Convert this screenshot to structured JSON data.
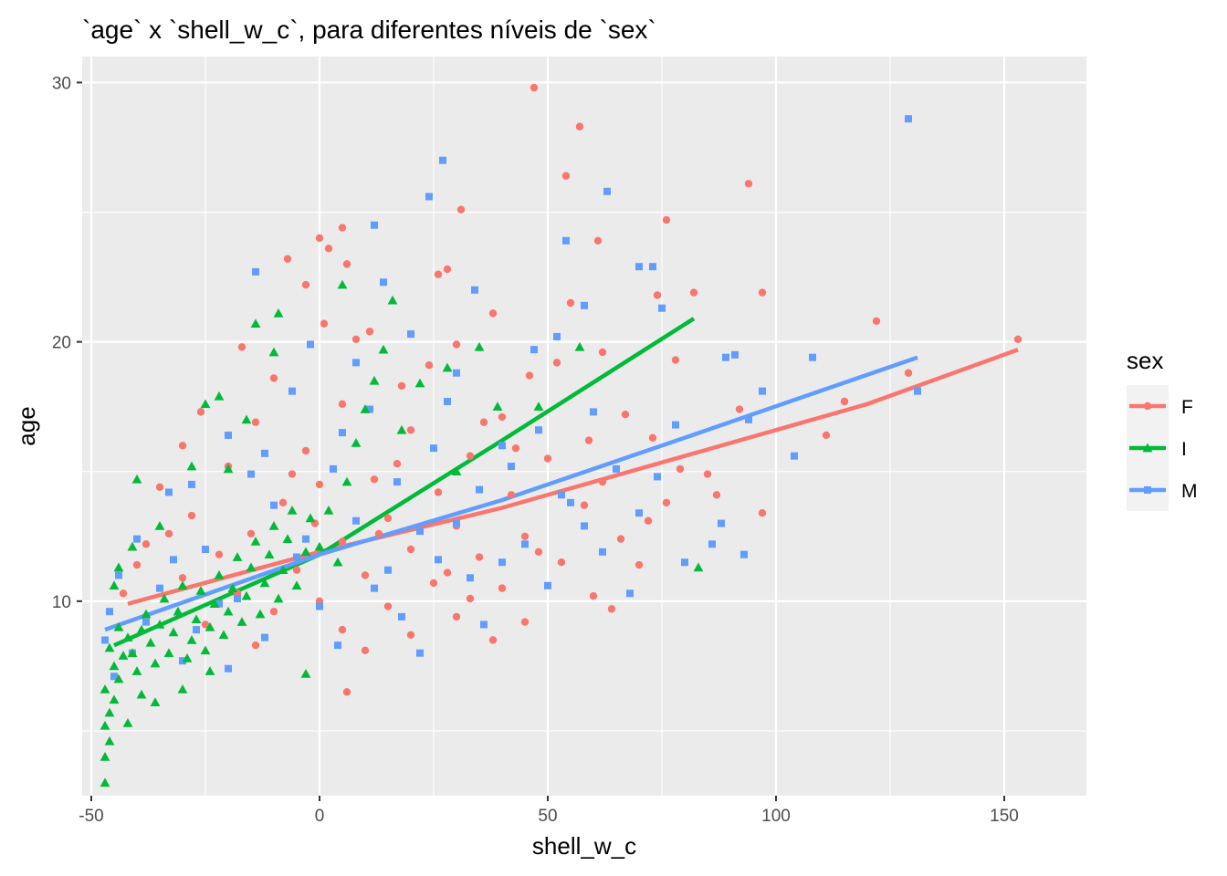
{
  "chart_data": {
    "type": "scatter",
    "title": "`age` x `shell_w_c`, para diferentes níveis de `sex`",
    "xlabel": "shell_w_c",
    "ylabel": "age",
    "xlim": [
      -52,
      168
    ],
    "ylim": [
      2.5,
      31
    ],
    "x_ticks": [
      -50,
      0,
      50,
      100,
      150
    ],
    "x_tick_labels": [
      "-50",
      "0",
      "50",
      "100",
      "150"
    ],
    "y_ticks": [
      10,
      20,
      30
    ],
    "y_tick_labels": [
      "10",
      "20",
      "30"
    ],
    "grid": true,
    "background": "#ebebeb",
    "legend": {
      "title": "sex",
      "position": "right"
    },
    "series": [
      {
        "name": "F",
        "color": "#f8766d",
        "shape": "circle",
        "trend": [
          [
            -42,
            9.9
          ],
          [
            0,
            11.9
          ],
          [
            40,
            13.6
          ],
          [
            80,
            15.6
          ],
          [
            120,
            17.6
          ],
          [
            153,
            19.7
          ]
        ],
        "points": [
          [
            47,
            29.8
          ],
          [
            57,
            28.3
          ],
          [
            54,
            26.4
          ],
          [
            94,
            26.1
          ],
          [
            31,
            25.1
          ],
          [
            76,
            24.7
          ],
          [
            5,
            24.4
          ],
          [
            0,
            24.0
          ],
          [
            61,
            23.9
          ],
          [
            2,
            23.6
          ],
          [
            -7,
            23.2
          ],
          [
            6,
            23.0
          ],
          [
            28,
            22.8
          ],
          [
            26,
            22.6
          ],
          [
            -3,
            22.2
          ],
          [
            82,
            21.9
          ],
          [
            97,
            21.9
          ],
          [
            55,
            21.5
          ],
          [
            74,
            21.8
          ],
          [
            38,
            21.1
          ],
          [
            122,
            20.8
          ],
          [
            1,
            20.7
          ],
          [
            11,
            20.4
          ],
          [
            -17,
            19.8
          ],
          [
            62,
            19.6
          ],
          [
            30,
            19.9
          ],
          [
            78,
            19.3
          ],
          [
            153,
            20.1
          ],
          [
            129,
            18.8
          ],
          [
            46,
            18.7
          ],
          [
            -10,
            18.6
          ],
          [
            18,
            18.3
          ],
          [
            92,
            17.4
          ],
          [
            115,
            17.7
          ],
          [
            67,
            17.2
          ],
          [
            111,
            16.4
          ],
          [
            -26,
            17.3
          ],
          [
            5,
            17.6
          ],
          [
            40,
            17.1
          ],
          [
            -14,
            16.9
          ],
          [
            20,
            16.6
          ],
          [
            59,
            16.2
          ],
          [
            -30,
            16.0
          ],
          [
            73,
            16.3
          ],
          [
            -3,
            15.8
          ],
          [
            33,
            15.6
          ],
          [
            50,
            15.5
          ],
          [
            -20,
            15.2
          ],
          [
            85,
            14.9
          ],
          [
            12,
            14.7
          ],
          [
            -35,
            14.4
          ],
          [
            0,
            14.5
          ],
          [
            26,
            14.2
          ],
          [
            42,
            14.1
          ],
          [
            -8,
            13.8
          ],
          [
            58,
            13.7
          ],
          [
            97,
            13.4
          ],
          [
            76,
            13.8
          ],
          [
            -28,
            13.3
          ],
          [
            15,
            13.2
          ],
          [
            30,
            12.9
          ],
          [
            -15,
            12.6
          ],
          [
            45,
            12.5
          ],
          [
            66,
            12.4
          ],
          [
            -38,
            12.2
          ],
          [
            5,
            12.3
          ],
          [
            20,
            12.0
          ],
          [
            -22,
            11.8
          ],
          [
            35,
            11.7
          ],
          [
            53,
            11.5
          ],
          [
            70,
            11.4
          ],
          [
            -5,
            11.2
          ],
          [
            10,
            11.0
          ],
          [
            -30,
            10.9
          ],
          [
            25,
            10.7
          ],
          [
            40,
            10.5
          ],
          [
            -18,
            10.3
          ],
          [
            60,
            10.2
          ],
          [
            0,
            10.0
          ],
          [
            15,
            9.8
          ],
          [
            -10,
            9.6
          ],
          [
            30,
            9.4
          ],
          [
            45,
            9.2
          ],
          [
            64,
            9.7
          ],
          [
            -25,
            9.1
          ],
          [
            5,
            8.9
          ],
          [
            20,
            8.7
          ],
          [
            38,
            8.5
          ],
          [
            -14,
            8.3
          ],
          [
            10,
            8.1
          ],
          [
            6,
            6.5
          ],
          [
            -40,
            11.4
          ],
          [
            -33,
            12.6
          ],
          [
            -43,
            10.3
          ],
          [
            87,
            14.1
          ],
          [
            79,
            15.1
          ],
          [
            72,
            13.1
          ],
          [
            24,
            19.1
          ],
          [
            8,
            20.1
          ],
          [
            52,
            19.2
          ],
          [
            36,
            16.9
          ],
          [
            -1,
            13.0
          ],
          [
            17,
            15.3
          ],
          [
            62,
            14.6
          ],
          [
            48,
            11.9
          ],
          [
            28,
            11.1
          ],
          [
            33,
            10.1
          ],
          [
            13,
            12.6
          ],
          [
            -6,
            14.9
          ],
          [
            43,
            15.9
          ]
        ]
      },
      {
        "name": "I",
        "color": "#00ba38",
        "shape": "triangle",
        "trend": [
          [
            -45,
            8.3
          ],
          [
            0,
            11.8
          ],
          [
            40,
            16.2
          ],
          [
            82,
            20.9
          ]
        ],
        "points": [
          [
            -47,
            3.0
          ],
          [
            -47,
            4.0
          ],
          [
            -46,
            4.6
          ],
          [
            -47,
            5.2
          ],
          [
            -46,
            5.7
          ],
          [
            -45,
            6.2
          ],
          [
            -47,
            6.6
          ],
          [
            -44,
            7.0
          ],
          [
            -45,
            7.5
          ],
          [
            -43,
            7.9
          ],
          [
            -46,
            8.2
          ],
          [
            -42,
            8.6
          ],
          [
            -44,
            9.0
          ],
          [
            -40,
            7.3
          ],
          [
            -41,
            8.0
          ],
          [
            -39,
            8.9
          ],
          [
            -38,
            9.5
          ],
          [
            -36,
            7.6
          ],
          [
            -37,
            8.4
          ],
          [
            -35,
            9.1
          ],
          [
            -34,
            10.1
          ],
          [
            -33,
            8.0
          ],
          [
            -32,
            8.8
          ],
          [
            -31,
            9.6
          ],
          [
            -30,
            10.6
          ],
          [
            -29,
            7.8
          ],
          [
            -28,
            8.5
          ],
          [
            -27,
            9.3
          ],
          [
            -26,
            10.4
          ],
          [
            -25,
            8.1
          ],
          [
            -24,
            9.0
          ],
          [
            -23,
            9.9
          ],
          [
            -22,
            11.0
          ],
          [
            -21,
            8.7
          ],
          [
            -20,
            9.6
          ],
          [
            -19,
            10.5
          ],
          [
            -18,
            11.7
          ],
          [
            -17,
            9.2
          ],
          [
            -16,
            10.2
          ],
          [
            -15,
            11.3
          ],
          [
            -14,
            12.3
          ],
          [
            -13,
            9.5
          ],
          [
            -12,
            10.7
          ],
          [
            -11,
            11.8
          ],
          [
            -10,
            12.9
          ],
          [
            -9,
            10.1
          ],
          [
            -8,
            11.2
          ],
          [
            -7,
            12.4
          ],
          [
            -6,
            13.5
          ],
          [
            -5,
            10.6
          ],
          [
            -3,
            11.9
          ],
          [
            -2,
            13.2
          ],
          [
            0,
            12.1
          ],
          [
            2,
            13.5
          ],
          [
            4,
            11.5
          ],
          [
            6,
            14.6
          ],
          [
            8,
            16.1
          ],
          [
            10,
            17.4
          ],
          [
            12,
            18.5
          ],
          [
            14,
            19.7
          ],
          [
            16,
            21.6
          ],
          [
            5,
            22.2
          ],
          [
            -9,
            21.1
          ],
          [
            -14,
            20.7
          ],
          [
            -28,
            15.2
          ],
          [
            -40,
            14.7
          ],
          [
            -22,
            17.9
          ],
          [
            -35,
            12.9
          ],
          [
            28,
            19.0
          ],
          [
            35,
            19.8
          ],
          [
            48,
            17.5
          ],
          [
            57,
            19.8
          ],
          [
            83,
            11.3
          ],
          [
            39,
            17.5
          ],
          [
            -3,
            7.2
          ],
          [
            -36,
            6.1
          ],
          [
            -30,
            6.6
          ],
          [
            -24,
            7.3
          ],
          [
            -42,
            5.3
          ],
          [
            -39,
            6.4
          ],
          [
            -20,
            15.1
          ],
          [
            -16,
            17.0
          ],
          [
            -10,
            19.6
          ],
          [
            -25,
            17.6
          ],
          [
            22,
            18.4
          ],
          [
            30,
            15.0
          ],
          [
            18,
            16.6
          ],
          [
            -45,
            10.6
          ],
          [
            -44,
            11.3
          ],
          [
            -41,
            12.1
          ]
        ]
      },
      {
        "name": "M",
        "color": "#619cff",
        "shape": "square",
        "trend": [
          [
            -47,
            8.9
          ],
          [
            0,
            11.8
          ],
          [
            40,
            13.9
          ],
          [
            80,
            16.3
          ],
          [
            131,
            19.4
          ]
        ],
        "points": [
          [
            129,
            28.6
          ],
          [
            27,
            27.0
          ],
          [
            63,
            25.8
          ],
          [
            24,
            25.6
          ],
          [
            12,
            24.5
          ],
          [
            54,
            23.9
          ],
          [
            70,
            22.9
          ],
          [
            73,
            22.9
          ],
          [
            -14,
            22.7
          ],
          [
            14,
            22.3
          ],
          [
            34,
            22.0
          ],
          [
            58,
            21.4
          ],
          [
            75,
            21.3
          ],
          [
            91,
            19.5
          ],
          [
            89,
            19.4
          ],
          [
            108,
            19.4
          ],
          [
            94,
            17.0
          ],
          [
            97,
            18.1
          ],
          [
            104,
            15.6
          ],
          [
            131,
            18.1
          ],
          [
            52,
            20.2
          ],
          [
            47,
            19.7
          ],
          [
            20,
            20.3
          ],
          [
            -2,
            19.9
          ],
          [
            8,
            19.2
          ],
          [
            30,
            18.8
          ],
          [
            60,
            17.3
          ],
          [
            78,
            16.8
          ],
          [
            40,
            16.0
          ],
          [
            25,
            15.9
          ],
          [
            -20,
            16.4
          ],
          [
            -12,
            15.7
          ],
          [
            3,
            15.1
          ],
          [
            17,
            14.6
          ],
          [
            35,
            14.3
          ],
          [
            55,
            13.8
          ],
          [
            70,
            13.4
          ],
          [
            88,
            13.0
          ],
          [
            -28,
            14.5
          ],
          [
            -33,
            14.2
          ],
          [
            -10,
            13.7
          ],
          [
            8,
            13.1
          ],
          [
            22,
            12.7
          ],
          [
            45,
            12.2
          ],
          [
            62,
            11.9
          ],
          [
            80,
            11.5
          ],
          [
            -40,
            12.4
          ],
          [
            -25,
            12.0
          ],
          [
            -5,
            11.7
          ],
          [
            15,
            11.2
          ],
          [
            33,
            10.9
          ],
          [
            50,
            10.6
          ],
          [
            68,
            10.3
          ],
          [
            -44,
            11.0
          ],
          [
            -35,
            10.5
          ],
          [
            -18,
            10.1
          ],
          [
            0,
            9.8
          ],
          [
            18,
            9.4
          ],
          [
            36,
            9.1
          ],
          [
            -46,
            9.6
          ],
          [
            -38,
            9.2
          ],
          [
            -27,
            8.9
          ],
          [
            -12,
            8.6
          ],
          [
            4,
            8.3
          ],
          [
            22,
            8.0
          ],
          [
            -47,
            8.5
          ],
          [
            -41,
            8.0
          ],
          [
            -30,
            7.7
          ],
          [
            -20,
            7.4
          ],
          [
            -45,
            7.1
          ],
          [
            42,
            15.2
          ],
          [
            -6,
            18.1
          ],
          [
            11,
            17.4
          ],
          [
            28,
            17.7
          ],
          [
            48,
            16.6
          ],
          [
            65,
            15.1
          ],
          [
            74,
            14.8
          ],
          [
            86,
            12.2
          ],
          [
            93,
            11.8
          ],
          [
            58,
            12.9
          ],
          [
            5,
            16.5
          ],
          [
            -15,
            14.9
          ],
          [
            30,
            13.0
          ],
          [
            12,
            10.5
          ],
          [
            -3,
            12.4
          ],
          [
            40,
            11.5
          ],
          [
            -32,
            11.6
          ],
          [
            -22,
            9.9
          ],
          [
            26,
            11.6
          ],
          [
            53,
            14.1
          ]
        ]
      }
    ]
  }
}
